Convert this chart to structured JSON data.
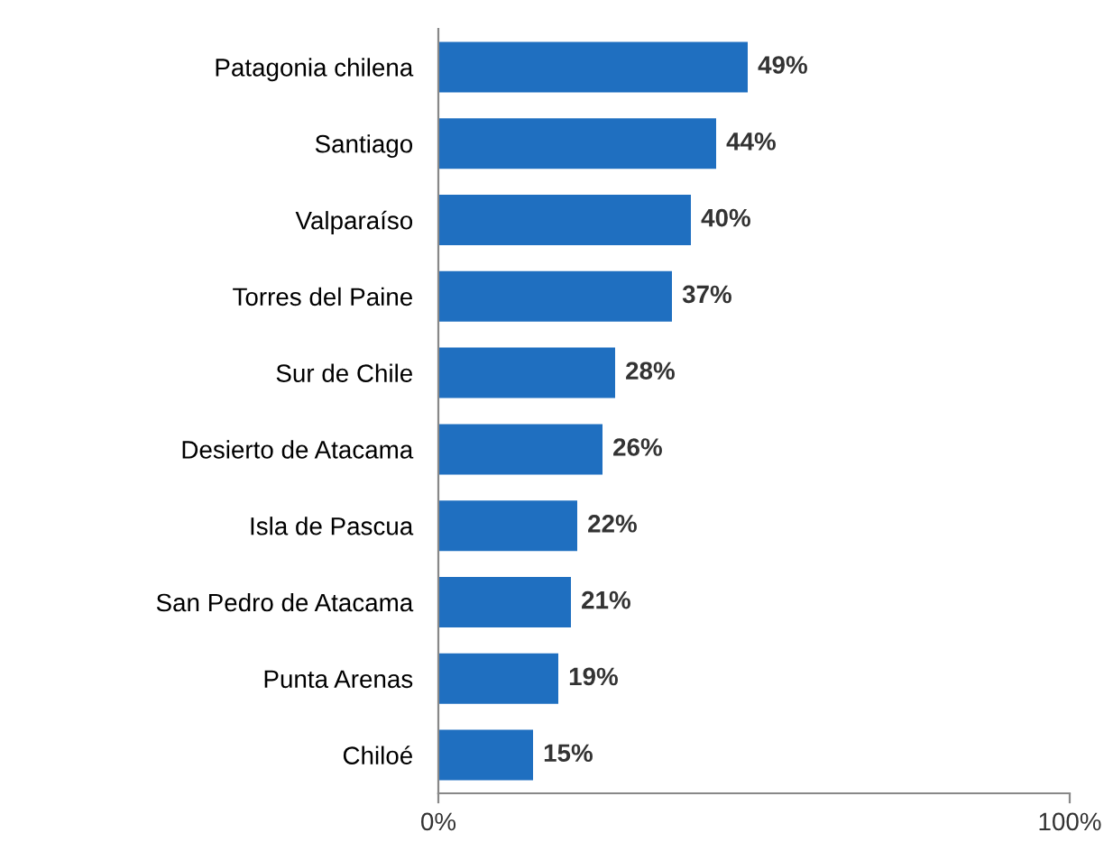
{
  "chart_data": {
    "type": "bar",
    "orientation": "horizontal",
    "categories": [
      "Patagonia chilena",
      "Santiago",
      "Valparaíso",
      "Torres del Paine",
      "Sur de Chile",
      "Desierto de Atacama",
      "Isla de Pascua",
      "San Pedro de Atacama",
      "Punta Arenas",
      "Chiloé"
    ],
    "values": [
      49,
      44,
      40,
      37,
      28,
      26,
      22,
      21,
      19,
      15
    ],
    "value_labels": [
      "49%",
      "44%",
      "40%",
      "37%",
      "28%",
      "26%",
      "22%",
      "21%",
      "19%",
      "15%"
    ],
    "color": "#1f6fc0",
    "xlim": [
      0,
      100
    ],
    "xticks": [
      {
        "value": 0,
        "label": "0%"
      },
      {
        "value": 100,
        "label": "100%"
      }
    ]
  }
}
